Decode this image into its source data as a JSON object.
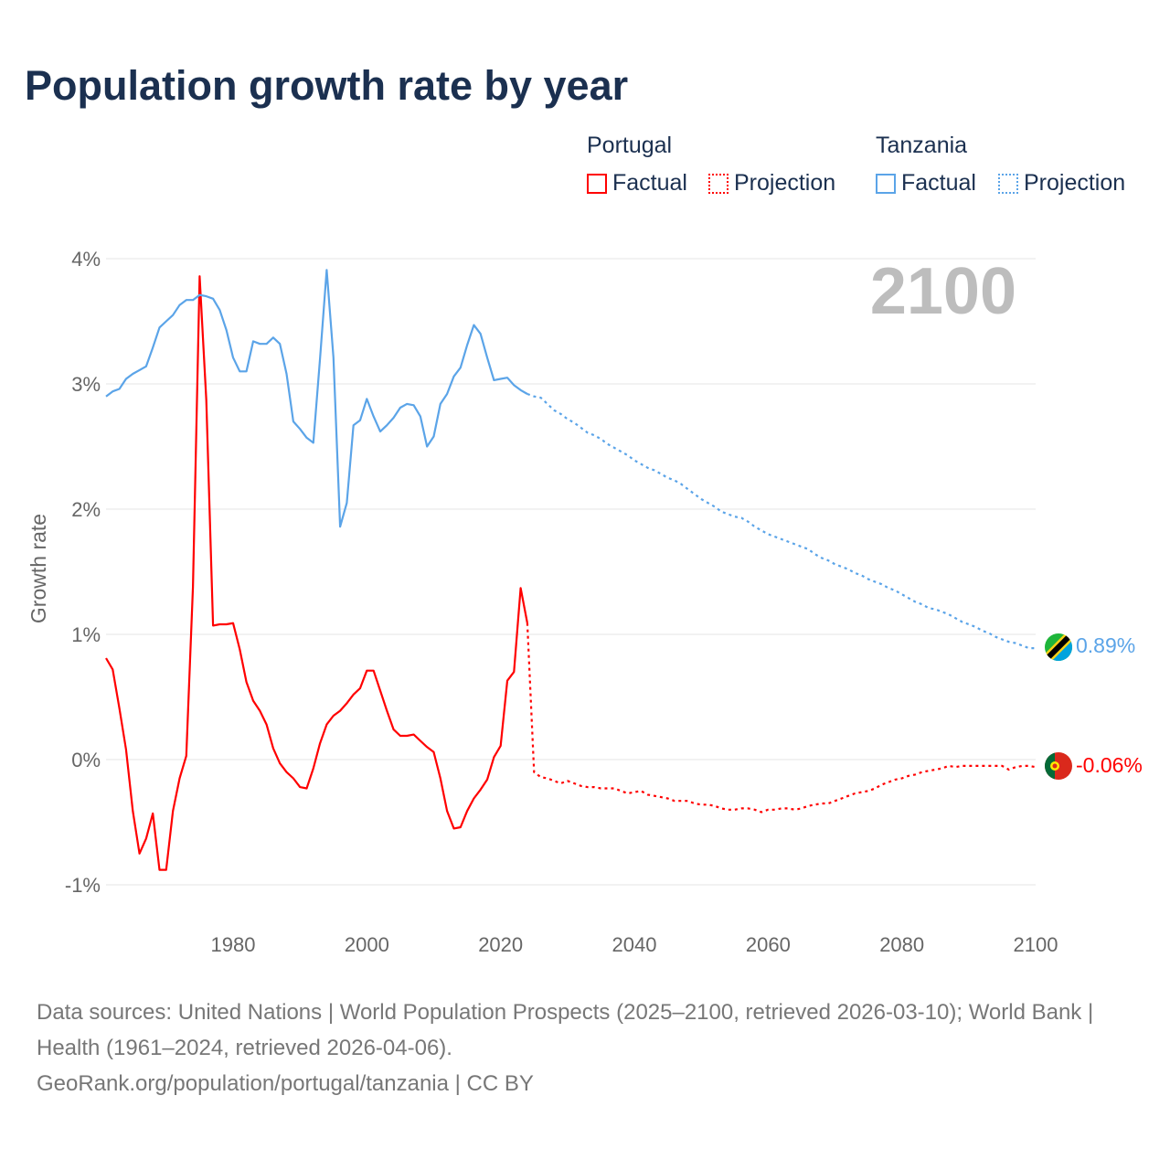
{
  "title": "Population growth rate by year",
  "legend": {
    "groups": [
      {
        "name": "Portugal",
        "factual": "Factual",
        "projection": "Projection",
        "color": "#ff0000"
      },
      {
        "name": "Tanzania",
        "factual": "Factual",
        "projection": "Projection",
        "color": "#5ba4e8"
      }
    ]
  },
  "year_label": "2100",
  "end_labels": {
    "tanzania": "0.89%",
    "portugal": "-0.06%"
  },
  "flags": {
    "tanzania": "tanzania-flag-icon",
    "portugal": "portugal-flag-icon"
  },
  "source": {
    "line1": "Data sources: United Nations | World Population Prospects (2025–2100, retrieved 2026-03-10); World Bank | Health (1961–2024, retrieved 2026-04-06).",
    "line2": "GeoRank.org/population/portugal/tanzania | CC BY"
  },
  "chart_data": {
    "type": "line",
    "title": "Population growth rate by year",
    "xlabel": "",
    "ylabel": "Growth rate",
    "xlim": [
      1961,
      2100
    ],
    "ylim": [
      -1,
      4
    ],
    "x_ticks": [
      "1980",
      "2000",
      "2020",
      "2040",
      "2060",
      "2080",
      "2100"
    ],
    "x_tick_values": [
      1980,
      2000,
      2020,
      2040,
      2060,
      2080,
      2100
    ],
    "y_ticks": [
      "-1%",
      "0%",
      "1%",
      "2%",
      "3%",
      "4%"
    ],
    "y_tick_values": [
      -1,
      0,
      1,
      2,
      3,
      4
    ],
    "grid": true,
    "legend_position": "top-right",
    "series": [
      {
        "name": "Portugal Factual",
        "color": "#ff0000",
        "style": "solid",
        "x_start": 1961,
        "values": [
          0.81,
          0.72,
          0.41,
          0.08,
          -0.41,
          -0.75,
          -0.63,
          -0.43,
          -0.88,
          -0.88,
          -0.41,
          -0.15,
          0.03,
          1.38,
          3.86,
          2.87,
          1.07,
          1.08,
          1.08,
          1.09,
          0.88,
          0.62,
          0.47,
          0.39,
          0.28,
          0.09,
          -0.03,
          -0.1,
          -0.15,
          -0.22,
          -0.23,
          -0.07,
          0.13,
          0.28,
          0.35,
          0.39,
          0.45,
          0.52,
          0.57,
          0.71,
          0.71,
          0.55,
          0.39,
          0.24,
          0.19,
          0.19,
          0.2,
          0.15,
          0.1,
          0.06,
          -0.15,
          -0.41,
          -0.55,
          -0.54,
          -0.41,
          -0.31,
          -0.24,
          -0.16,
          0.02,
          0.11,
          0.63,
          0.7,
          1.37,
          1.09
        ]
      },
      {
        "name": "Portugal Projection",
        "color": "#ff0000",
        "style": "dotted",
        "x_start": 2024,
        "values": [
          1.09,
          -0.1,
          -0.14,
          -0.15,
          -0.17,
          -0.19,
          -0.17,
          -0.19,
          -0.21,
          -0.22,
          -0.22,
          -0.23,
          -0.23,
          -0.23,
          -0.25,
          -0.27,
          -0.26,
          -0.25,
          -0.28,
          -0.29,
          -0.3,
          -0.31,
          -0.33,
          -0.33,
          -0.33,
          -0.35,
          -0.36,
          -0.36,
          -0.37,
          -0.39,
          -0.4,
          -0.4,
          -0.39,
          -0.39,
          -0.4,
          -0.42,
          -0.4,
          -0.4,
          -0.39,
          -0.39,
          -0.4,
          -0.39,
          -0.37,
          -0.36,
          -0.35,
          -0.35,
          -0.33,
          -0.31,
          -0.29,
          -0.27,
          -0.26,
          -0.25,
          -0.23,
          -0.2,
          -0.18,
          -0.16,
          -0.15,
          -0.13,
          -0.12,
          -0.1,
          -0.09,
          -0.08,
          -0.07,
          -0.05,
          -0.06,
          -0.05,
          -0.05,
          -0.05,
          -0.05,
          -0.05,
          -0.05,
          -0.05,
          -0.08,
          -0.06,
          -0.05,
          -0.05,
          -0.06
        ]
      },
      {
        "name": "Tanzania Factual",
        "color": "#5ba4e8",
        "style": "solid",
        "x_start": 1961,
        "values": [
          2.9,
          2.94,
          2.96,
          3.04,
          3.08,
          3.11,
          3.14,
          3.29,
          3.45,
          3.5,
          3.55,
          3.63,
          3.67,
          3.67,
          3.71,
          3.7,
          3.68,
          3.59,
          3.43,
          3.21,
          3.1,
          3.1,
          3.34,
          3.32,
          3.32,
          3.37,
          3.32,
          3.08,
          2.7,
          2.64,
          2.57,
          2.53,
          3.2,
          3.91,
          3.21,
          1.86,
          2.05,
          2.67,
          2.71,
          2.88,
          2.74,
          2.62,
          2.67,
          2.73,
          2.81,
          2.84,
          2.83,
          2.74,
          2.5,
          2.58,
          2.84,
          2.92,
          3.06,
          3.13,
          3.31,
          3.47,
          3.4,
          3.21,
          3.03,
          3.04,
          3.05,
          2.99,
          2.95,
          2.92
        ]
      },
      {
        "name": "Tanzania Projection",
        "color": "#5ba4e8",
        "style": "dotted",
        "x_start": 2024,
        "values": [
          2.92,
          2.9,
          2.89,
          2.84,
          2.79,
          2.76,
          2.72,
          2.69,
          2.65,
          2.61,
          2.59,
          2.56,
          2.52,
          2.49,
          2.46,
          2.43,
          2.39,
          2.36,
          2.33,
          2.31,
          2.28,
          2.25,
          2.23,
          2.2,
          2.16,
          2.12,
          2.08,
          2.05,
          2.02,
          1.98,
          1.96,
          1.94,
          1.93,
          1.9,
          1.86,
          1.83,
          1.8,
          1.78,
          1.76,
          1.74,
          1.72,
          1.7,
          1.68,
          1.64,
          1.61,
          1.59,
          1.56,
          1.54,
          1.52,
          1.49,
          1.47,
          1.44,
          1.42,
          1.4,
          1.37,
          1.35,
          1.32,
          1.29,
          1.26,
          1.24,
          1.21,
          1.2,
          1.18,
          1.16,
          1.13,
          1.1,
          1.08,
          1.06,
          1.03,
          1.01,
          0.98,
          0.96,
          0.94,
          0.93,
          0.91,
          0.89,
          0.89
        ]
      }
    ]
  }
}
